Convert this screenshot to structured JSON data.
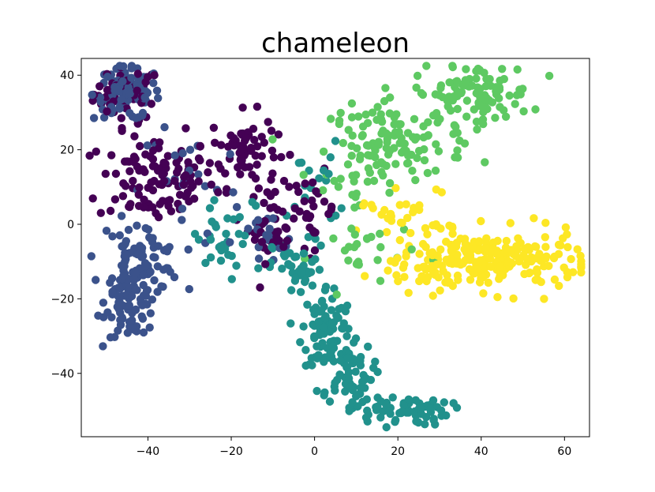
{
  "chart_data": {
    "type": "scatter",
    "title": "chameleon",
    "xlabel": "",
    "ylabel": "",
    "xlim": [
      -56,
      66
    ],
    "ylim": [
      -57,
      44.5
    ],
    "xticks": [
      -40,
      -20,
      0,
      20,
      40,
      60
    ],
    "yticks": [
      -40,
      -20,
      0,
      20,
      40
    ],
    "xtick_labels": [
      "−40",
      "−20",
      "0",
      "20",
      "40",
      "60"
    ],
    "ytick_labels": [
      "−40",
      "−20",
      "0",
      "20",
      "40"
    ],
    "grid": false,
    "legend": "none",
    "colormap": "viridis",
    "series": [
      {
        "color": "#440154",
        "clusters": [
          {
            "cx": -45,
            "cy": 35,
            "sx": 4,
            "sy": 3.5,
            "n": 50
          },
          {
            "cx": -38,
            "cy": 12,
            "sx": 7,
            "sy": 6,
            "n": 110
          },
          {
            "cx": -17,
            "cy": 20,
            "sx": 4,
            "sy": 5,
            "n": 70
          },
          {
            "cx": -10,
            "cy": 0,
            "sx": 3,
            "sy": 5,
            "n": 40
          },
          {
            "cx": 0,
            "cy": 4,
            "sx": 2.5,
            "sy": 5,
            "n": 25
          }
        ]
      },
      {
        "color": "#3b528b",
        "clusters": [
          {
            "cx": -45,
            "cy": 35,
            "sx": 4,
            "sy": 3.5,
            "n": 110
          },
          {
            "cx": -44,
            "cy": -20,
            "sx": 3,
            "sy": 5,
            "n": 100
          },
          {
            "cx": -42,
            "cy": -9,
            "sx": 5,
            "sy": 5,
            "n": 70
          },
          {
            "cx": -12,
            "cy": -5,
            "sx": 4,
            "sy": 4,
            "n": 20
          },
          {
            "cx": -30,
            "cy": 12,
            "sx": 6,
            "sy": 8,
            "n": 20
          }
        ]
      },
      {
        "color": "#21918c",
        "clusters": [
          {
            "cx": 3,
            "cy": -28,
            "sx": 3,
            "sy": 6,
            "n": 90
          },
          {
            "cx": 8,
            "cy": -40,
            "sx": 3,
            "sy": 4,
            "n": 60
          },
          {
            "cx": 20,
            "cy": -50,
            "sx": 6,
            "sy": 2,
            "n": 70
          },
          {
            "cx": -4,
            "cy": -12,
            "sx": 3,
            "sy": 4,
            "n": 40
          },
          {
            "cx": -20,
            "cy": -5,
            "sx": 6,
            "sy": 6,
            "n": 35
          },
          {
            "cx": 0,
            "cy": 10,
            "sx": 3,
            "sy": 6,
            "n": 20
          }
        ]
      },
      {
        "color": "#5ec962",
        "clusters": [
          {
            "cx": 38,
            "cy": 35,
            "sx": 7,
            "sy": 4,
            "n": 100
          },
          {
            "cx": 20,
            "cy": 22,
            "sx": 8,
            "sy": 5,
            "n": 110
          },
          {
            "cx": 12,
            "cy": -8,
            "sx": 6,
            "sy": 5,
            "n": 25
          },
          {
            "cx": 10,
            "cy": 14,
            "sx": 4,
            "sy": 4,
            "n": 20
          }
        ]
      },
      {
        "color": "#fde725",
        "clusters": [
          {
            "cx": 44,
            "cy": -10,
            "sx": 10,
            "sy": 4,
            "n": 190
          },
          {
            "cx": 28,
            "cy": -8,
            "sx": 6,
            "sy": 5,
            "n": 60
          },
          {
            "cx": 20,
            "cy": 5,
            "sx": 5,
            "sy": 3,
            "n": 20
          }
        ]
      }
    ]
  }
}
